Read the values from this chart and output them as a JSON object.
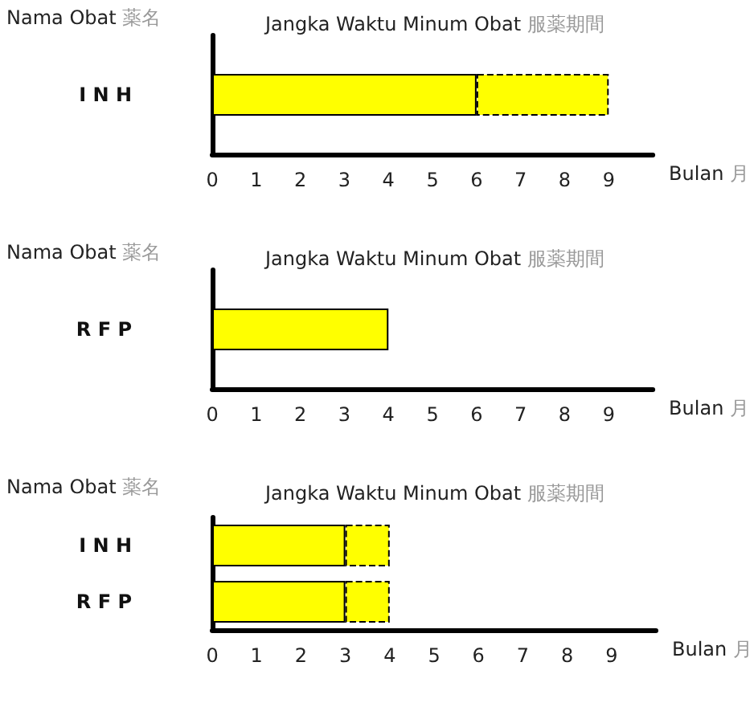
{
  "chart_data": [
    {
      "type": "bar",
      "orientation": "horizontal",
      "stacked": true,
      "title": "Jangka Waktu Minum Obat 服薬期間",
      "ylabel": "Nama Obat 薬名",
      "xlabel": "Bulan 月",
      "categories": [
        "I N H"
      ],
      "series": [
        {
          "color": "#ffff00",
          "values": [
            6
          ],
          "line_style": "solid"
        },
        {
          "color": "#ffff00",
          "values": [
            3
          ],
          "line_style": "dashed"
        }
      ],
      "xlim": [
        0,
        10
      ],
      "xticks": [
        0,
        1,
        2,
        3,
        4,
        5,
        6,
        7,
        8,
        9
      ],
      "grid": false
    },
    {
      "type": "bar",
      "orientation": "horizontal",
      "stacked": true,
      "title": "Jangka Waktu Minum Obat 服薬期間",
      "ylabel": "Nama Obat 薬名",
      "xlabel": "Bulan 月",
      "categories": [
        "R F P"
      ],
      "series": [
        {
          "color": "#ffff00",
          "values": [
            4
          ],
          "line_style": "solid"
        }
      ],
      "xlim": [
        0,
        10
      ],
      "xticks": [
        0,
        1,
        2,
        3,
        4,
        5,
        6,
        7,
        8,
        9
      ],
      "grid": false
    },
    {
      "type": "bar",
      "orientation": "horizontal",
      "stacked": true,
      "title": "Jangka Waktu Minum Obat 服薬期間",
      "ylabel": "Nama Obat 薬名",
      "xlabel": "Bulan 月",
      "categories": [
        "I N H",
        "R F P"
      ],
      "series": [
        {
          "color": "#ffff00",
          "values": [
            3,
            3
          ],
          "line_style": "solid"
        },
        {
          "color": "#ffff00",
          "values": [
            1,
            1
          ],
          "line_style": "dashed"
        }
      ],
      "xlim": [
        0,
        10
      ],
      "xticks": [
        0,
        1,
        2,
        3,
        4,
        5,
        6,
        7,
        8,
        9
      ],
      "grid": false
    }
  ]
}
